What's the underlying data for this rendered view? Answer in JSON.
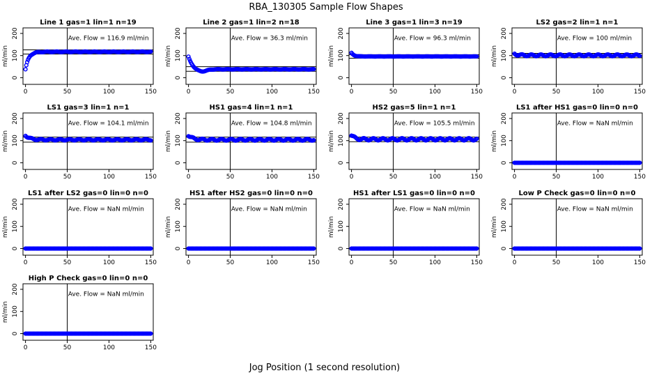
{
  "figure": {
    "title": "RBA_130305  Sample Flow Shapes",
    "xlabel": "Jog Position (1 second resolution)",
    "ylabel": "ml/min",
    "point_color": "#0000ff",
    "line_color": "#000000"
  },
  "chart_data": [
    {
      "type": "scatter",
      "title": "Line 1 gas=1 lin=1 n=19",
      "annotation": "Ave. Flow =  116.9  ml/min",
      "ylabel": "ml/min",
      "xlim": [
        -3,
        153
      ],
      "ylim": [
        -30,
        225
      ],
      "xticks": [
        0,
        50,
        100,
        150
      ],
      "yticks": [
        0,
        100,
        200
      ],
      "vline": 50,
      "hlines": [
        126,
        107
      ],
      "profile": {
        "start": 38,
        "end": 117,
        "decay": 4,
        "wobble": 1.5,
        "n": 150
      },
      "series": [
        {
          "name": "flow",
          "x_range": [
            0,
            150
          ]
        }
      ]
    },
    {
      "type": "scatter",
      "title": "Line 2 gas=1 lin=2 n=18",
      "annotation": "Ave. Flow =  36.3  ml/min",
      "ylabel": "ml/min",
      "xlim": [
        -3,
        153
      ],
      "ylim": [
        -30,
        225
      ],
      "xticks": [
        0,
        50,
        100,
        150
      ],
      "yticks": [
        0,
        100,
        200
      ],
      "vline": 50,
      "hlines": [
        50,
        29
      ],
      "profile": {
        "start": 95,
        "end": 38,
        "decay": 5,
        "dip": {
          "at": 15,
          "depth": 12,
          "width": 6
        },
        "wobble": 1,
        "n": 150
      },
      "series": [
        {
          "name": "flow",
          "x_range": [
            0,
            150
          ]
        }
      ]
    },
    {
      "type": "scatter",
      "title": "Line 3 gas=1 lin=3 n=19",
      "annotation": "Ave. Flow =  96.3  ml/min",
      "ylabel": "ml/min",
      "xlim": [
        -3,
        153
      ],
      "ylim": [
        -30,
        225
      ],
      "xticks": [
        0,
        50,
        100,
        150
      ],
      "yticks": [
        0,
        100,
        200
      ],
      "vline": 50,
      "hlines": [
        104,
        88
      ],
      "profile": {
        "start": 112,
        "end": 96,
        "decay": 3,
        "wobble": 0.5,
        "n": 150
      },
      "series": [
        {
          "name": "flow",
          "x_range": [
            0,
            150
          ]
        }
      ]
    },
    {
      "type": "scatter",
      "title": "LS2 gas=2 lin=1 n=1",
      "annotation": "Ave. Flow =  100  ml/min",
      "ylabel": "ml/min",
      "xlim": [
        -3,
        153
      ],
      "ylim": [
        -30,
        225
      ],
      "xticks": [
        0,
        50,
        100,
        150
      ],
      "yticks": [
        0,
        100,
        200
      ],
      "vline": 50,
      "hlines": [
        110,
        90
      ],
      "profile": {
        "start": 108,
        "end": 101,
        "decay": 4,
        "wobble": 4,
        "n": 150
      },
      "series": [
        {
          "name": "flow",
          "x_range": [
            0,
            150
          ]
        }
      ]
    },
    {
      "type": "scatter",
      "title": "LS1 gas=3 lin=1 n=1",
      "annotation": "Ave. Flow =  104.1  ml/min",
      "ylabel": "ml/min",
      "xlim": [
        -3,
        153
      ],
      "ylim": [
        -30,
        225
      ],
      "xticks": [
        0,
        50,
        100,
        150
      ],
      "yticks": [
        0,
        100,
        200
      ],
      "vline": 50,
      "hlines": [
        116,
        93
      ],
      "profile": {
        "start": 124,
        "end": 104,
        "decay": 5,
        "wobble": 3,
        "n": 150
      },
      "series": [
        {
          "name": "flow",
          "x_range": [
            0,
            150
          ]
        }
      ]
    },
    {
      "type": "scatter",
      "title": "HS1 gas=4 lin=1 n=1",
      "annotation": "Ave. Flow =  104.8  ml/min",
      "ylabel": "ml/min",
      "xlim": [
        -3,
        153
      ],
      "ylim": [
        -30,
        225
      ],
      "xticks": [
        0,
        50,
        100,
        150
      ],
      "yticks": [
        0,
        100,
        200
      ],
      "vline": 50,
      "hlines": [
        116,
        93
      ],
      "profile": {
        "start": 124,
        "end": 104,
        "decay": 5,
        "wobble": 4,
        "n": 150
      },
      "series": [
        {
          "name": "flow",
          "x_range": [
            0,
            150
          ]
        }
      ]
    },
    {
      "type": "scatter",
      "title": "HS2 gas=5 lin=1 n=1",
      "annotation": "Ave. Flow =  105.5  ml/min",
      "ylabel": "ml/min",
      "xlim": [
        -3,
        153
      ],
      "ylim": [
        -30,
        225
      ],
      "xticks": [
        0,
        50,
        100,
        150
      ],
      "yticks": [
        0,
        100,
        200
      ],
      "vline": 50,
      "hlines": [
        116,
        95
      ],
      "profile": {
        "start": 124,
        "end": 106,
        "decay": 4,
        "wobble": 5,
        "n": 150
      },
      "series": [
        {
          "name": "flow",
          "x_range": [
            0,
            150
          ]
        }
      ]
    },
    {
      "type": "scatter",
      "title": "LS1 after HS1 gas=0 lin=0 n=0",
      "annotation": "Ave. Flow =  NaN  ml/min",
      "ylabel": "ml/min",
      "xlim": [
        -3,
        153
      ],
      "ylim": [
        -30,
        225
      ],
      "xticks": [
        0,
        50,
        100,
        150
      ],
      "yticks": [
        0,
        100,
        200
      ],
      "vline": 50,
      "hlines": [
        0
      ],
      "profile": {
        "start": 0,
        "end": 0,
        "decay": 1,
        "wobble": 0,
        "n": 150
      },
      "series": [
        {
          "name": "flow",
          "x_range": [
            0,
            150
          ]
        }
      ]
    },
    {
      "type": "scatter",
      "title": "LS1 after LS2 gas=0 lin=0 n=0",
      "annotation": "Ave. Flow =  NaN  ml/min",
      "ylabel": "ml/min",
      "xlim": [
        -3,
        153
      ],
      "ylim": [
        -30,
        225
      ],
      "xticks": [
        0,
        50,
        100,
        150
      ],
      "yticks": [
        0,
        100,
        200
      ],
      "vline": 50,
      "hlines": [
        0
      ],
      "profile": {
        "start": 0,
        "end": 0,
        "decay": 1,
        "wobble": 0,
        "n": 150
      },
      "series": [
        {
          "name": "flow",
          "x_range": [
            0,
            150
          ]
        }
      ]
    },
    {
      "type": "scatter",
      "title": "HS1 after HS2 gas=0 lin=0 n=0",
      "annotation": "Ave. Flow =  NaN  ml/min",
      "ylabel": "ml/min",
      "xlim": [
        -3,
        153
      ],
      "ylim": [
        -30,
        225
      ],
      "xticks": [
        0,
        50,
        100,
        150
      ],
      "yticks": [
        0,
        100,
        200
      ],
      "vline": 50,
      "hlines": [
        0
      ],
      "profile": {
        "start": 0,
        "end": 0,
        "decay": 1,
        "wobble": 0,
        "n": 150
      },
      "series": [
        {
          "name": "flow",
          "x_range": [
            0,
            150
          ]
        }
      ]
    },
    {
      "type": "scatter",
      "title": "HS1 after LS1 gas=0 lin=0 n=0",
      "annotation": "Ave. Flow =  NaN  ml/min",
      "ylabel": "ml/min",
      "xlim": [
        -3,
        153
      ],
      "ylim": [
        -30,
        225
      ],
      "xticks": [
        0,
        50,
        100,
        150
      ],
      "yticks": [
        0,
        100,
        200
      ],
      "vline": 50,
      "hlines": [
        0
      ],
      "profile": {
        "start": 0,
        "end": 0,
        "decay": 1,
        "wobble": 0,
        "n": 150
      },
      "series": [
        {
          "name": "flow",
          "x_range": [
            0,
            150
          ]
        }
      ]
    },
    {
      "type": "scatter",
      "title": "Low P Check gas=0 lin=0 n=0",
      "annotation": "Ave. Flow =  NaN  ml/min",
      "ylabel": "ml/min",
      "xlim": [
        -3,
        153
      ],
      "ylim": [
        -30,
        225
      ],
      "xticks": [
        0,
        50,
        100,
        150
      ],
      "yticks": [
        0,
        100,
        200
      ],
      "vline": 50,
      "hlines": [
        0
      ],
      "profile": {
        "start": 0,
        "end": 0,
        "decay": 1,
        "wobble": 0,
        "n": 150
      },
      "series": [
        {
          "name": "flow",
          "x_range": [
            0,
            150
          ]
        }
      ]
    },
    {
      "type": "scatter",
      "title": "High P Check gas=0 lin=0 n=0",
      "annotation": "Ave. Flow =  NaN  ml/min",
      "ylabel": "ml/min",
      "xlim": [
        -3,
        153
      ],
      "ylim": [
        -30,
        225
      ],
      "xticks": [
        0,
        50,
        100,
        150
      ],
      "yticks": [
        0,
        100,
        200
      ],
      "vline": 50,
      "hlines": [
        0
      ],
      "profile": {
        "start": 0,
        "end": 0,
        "decay": 1,
        "wobble": 0,
        "n": 150
      },
      "series": [
        {
          "name": "flow",
          "x_range": [
            0,
            150
          ]
        }
      ]
    }
  ]
}
